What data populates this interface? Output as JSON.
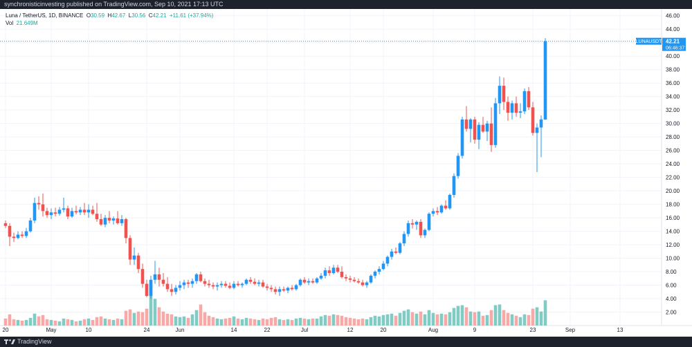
{
  "header": {
    "published": "synchronisticinvesting published on TradingView.com, Sep 10, 2021 17:13 UTC"
  },
  "footer": {
    "brand": "TradingView"
  },
  "legend": {
    "symbol": "Luna / TetherUS, 1D, BINANCE",
    "o_label": "O",
    "o": "30.59",
    "h_label": "H",
    "h": "42.67",
    "l_label": "L",
    "l": "30.56",
    "c_label": "C",
    "c": "42.21",
    "change": "+11.61 (+37.94%)",
    "vol_label": "Vol",
    "vol": "21.649M"
  },
  "price_tag": {
    "symbol": "LUNAUSDT",
    "price": "42.21",
    "countdown": "06:46:37"
  },
  "colors": {
    "up": "#2196f3",
    "down": "#ef5350",
    "vol_up": "#80cbc4",
    "vol_down": "#f7a9a7",
    "background": "#ffffff",
    "grid": "#f0f3fa",
    "axis_text": "#131722",
    "last_price_line": "#2196f3"
  },
  "chart_data": {
    "type": "candlestick",
    "title": "Luna / TetherUS, 1D, BINANCE",
    "y_range": [
      0,
      47
    ],
    "y_ticks": [
      "46.00",
      "44.00",
      "42.00",
      "40.00",
      "38.00",
      "36.00",
      "34.00",
      "32.00",
      "30.00",
      "28.00",
      "26.00",
      "24.00",
      "22.00",
      "20.00",
      "18.00",
      "16.00",
      "14.00",
      "12.00",
      "10.00",
      "8.00",
      "6.00",
      "4.00",
      "2.00"
    ],
    "x_ticks": [
      {
        "label": "20",
        "i": 0
      },
      {
        "label": "May",
        "i": 11
      },
      {
        "label": "10",
        "i": 20
      },
      {
        "label": "24",
        "i": 34
      },
      {
        "label": "Jun",
        "i": 42
      },
      {
        "label": "14",
        "i": 55
      },
      {
        "label": "22",
        "i": 63
      },
      {
        "label": "Jul",
        "i": 72
      },
      {
        "label": "12",
        "i": 83
      },
      {
        "label": "20",
        "i": 91
      },
      {
        "label": "Aug",
        "i": 103
      },
      {
        "label": "9",
        "i": 113
      },
      {
        "label": "23",
        "i": 127
      },
      {
        "label": "Sep",
        "i": 136
      },
      {
        "label": "13",
        "i": 148
      }
    ],
    "grid": true,
    "candles": [
      {
        "o": 15.2,
        "h": 15.6,
        "l": 14.5,
        "c": 14.8,
        "v": 1.0
      },
      {
        "o": 14.8,
        "h": 15.2,
        "l": 11.8,
        "c": 13.2,
        "v": 1.6
      },
      {
        "o": 13.2,
        "h": 13.8,
        "l": 12.4,
        "c": 13.0,
        "v": 0.9
      },
      {
        "o": 13.0,
        "h": 14.0,
        "l": 12.8,
        "c": 13.5,
        "v": 0.8
      },
      {
        "o": 13.5,
        "h": 14.0,
        "l": 13.0,
        "c": 13.3,
        "v": 0.7
      },
      {
        "o": 13.3,
        "h": 14.5,
        "l": 13.0,
        "c": 14.0,
        "v": 0.8
      },
      {
        "o": 14.0,
        "h": 16.0,
        "l": 13.8,
        "c": 15.6,
        "v": 1.1
      },
      {
        "o": 15.6,
        "h": 19.0,
        "l": 15.2,
        "c": 18.2,
        "v": 1.7
      },
      {
        "o": 18.2,
        "h": 19.2,
        "l": 17.2,
        "c": 18.0,
        "v": 1.3
      },
      {
        "o": 18.0,
        "h": 19.6,
        "l": 16.2,
        "c": 17.0,
        "v": 1.5
      },
      {
        "o": 17.0,
        "h": 17.5,
        "l": 16.0,
        "c": 16.4,
        "v": 0.9
      },
      {
        "o": 16.4,
        "h": 17.4,
        "l": 15.8,
        "c": 16.8,
        "v": 0.8
      },
      {
        "o": 16.8,
        "h": 17.5,
        "l": 16.2,
        "c": 16.6,
        "v": 0.7
      },
      {
        "o": 16.6,
        "h": 17.6,
        "l": 16.3,
        "c": 17.2,
        "v": 0.6
      },
      {
        "o": 17.2,
        "h": 19.0,
        "l": 16.8,
        "c": 17.4,
        "v": 1.0
      },
      {
        "o": 17.4,
        "h": 17.8,
        "l": 15.8,
        "c": 16.2,
        "v": 0.9
      },
      {
        "o": 16.2,
        "h": 17.5,
        "l": 16.0,
        "c": 17.0,
        "v": 0.8
      },
      {
        "o": 17.0,
        "h": 17.8,
        "l": 16.5,
        "c": 16.8,
        "v": 0.6
      },
      {
        "o": 16.8,
        "h": 17.6,
        "l": 16.4,
        "c": 17.2,
        "v": 0.7
      },
      {
        "o": 17.2,
        "h": 18.2,
        "l": 16.4,
        "c": 16.8,
        "v": 0.9
      },
      {
        "o": 16.8,
        "h": 18.0,
        "l": 16.0,
        "c": 17.2,
        "v": 1.0
      },
      {
        "o": 17.2,
        "h": 17.8,
        "l": 16.4,
        "c": 16.6,
        "v": 0.8
      },
      {
        "o": 16.6,
        "h": 18.2,
        "l": 15.4,
        "c": 15.8,
        "v": 1.2
      },
      {
        "o": 15.8,
        "h": 16.6,
        "l": 14.8,
        "c": 15.0,
        "v": 1.3
      },
      {
        "o": 15.0,
        "h": 16.4,
        "l": 14.6,
        "c": 16.0,
        "v": 1.0
      },
      {
        "o": 16.0,
        "h": 17.0,
        "l": 15.2,
        "c": 15.6,
        "v": 0.9
      },
      {
        "o": 15.6,
        "h": 16.2,
        "l": 15.0,
        "c": 15.9,
        "v": 0.8
      },
      {
        "o": 15.9,
        "h": 17.0,
        "l": 15.0,
        "c": 15.2,
        "v": 1.0
      },
      {
        "o": 15.2,
        "h": 16.4,
        "l": 14.8,
        "c": 15.8,
        "v": 0.9
      },
      {
        "o": 15.8,
        "h": 16.0,
        "l": 12.2,
        "c": 13.0,
        "v": 2.1
      },
      {
        "o": 13.0,
        "h": 13.4,
        "l": 9.0,
        "c": 9.8,
        "v": 2.3
      },
      {
        "o": 9.8,
        "h": 11.6,
        "l": 9.0,
        "c": 10.4,
        "v": 1.8
      },
      {
        "o": 10.4,
        "h": 10.8,
        "l": 7.8,
        "c": 8.4,
        "v": 2.0
      },
      {
        "o": 8.4,
        "h": 9.2,
        "l": 5.6,
        "c": 6.2,
        "v": 1.9
      },
      {
        "o": 6.2,
        "h": 6.8,
        "l": 4.2,
        "c": 4.4,
        "v": 2.4
      },
      {
        "o": 4.4,
        "h": 7.4,
        "l": 4.0,
        "c": 6.8,
        "v": 5.9
      },
      {
        "o": 6.8,
        "h": 9.6,
        "l": 6.2,
        "c": 7.6,
        "v": 3.8
      },
      {
        "o": 7.6,
        "h": 8.6,
        "l": 5.8,
        "c": 6.8,
        "v": 2.6
      },
      {
        "o": 6.8,
        "h": 7.8,
        "l": 5.8,
        "c": 6.2,
        "v": 2.0
      },
      {
        "o": 6.2,
        "h": 7.2,
        "l": 5.0,
        "c": 5.4,
        "v": 1.7
      },
      {
        "o": 5.4,
        "h": 6.2,
        "l": 4.4,
        "c": 5.0,
        "v": 1.6
      },
      {
        "o": 5.0,
        "h": 6.0,
        "l": 4.6,
        "c": 5.6,
        "v": 1.3
      },
      {
        "o": 5.6,
        "h": 6.6,
        "l": 5.2,
        "c": 6.0,
        "v": 1.2
      },
      {
        "o": 6.0,
        "h": 6.8,
        "l": 5.4,
        "c": 6.4,
        "v": 1.3
      },
      {
        "o": 6.4,
        "h": 6.8,
        "l": 5.6,
        "c": 6.2,
        "v": 1.1
      },
      {
        "o": 6.2,
        "h": 7.0,
        "l": 5.6,
        "c": 6.6,
        "v": 1.6
      },
      {
        "o": 6.6,
        "h": 7.8,
        "l": 6.2,
        "c": 7.6,
        "v": 2.2
      },
      {
        "o": 7.6,
        "h": 8.0,
        "l": 6.4,
        "c": 6.6,
        "v": 3.0
      },
      {
        "o": 6.6,
        "h": 7.0,
        "l": 5.8,
        "c": 6.2,
        "v": 1.9
      },
      {
        "o": 6.2,
        "h": 6.8,
        "l": 5.6,
        "c": 6.0,
        "v": 1.4
      },
      {
        "o": 6.0,
        "h": 6.4,
        "l": 5.4,
        "c": 5.8,
        "v": 1.2
      },
      {
        "o": 5.8,
        "h": 6.4,
        "l": 5.2,
        "c": 6.0,
        "v": 1.0
      },
      {
        "o": 6.0,
        "h": 6.6,
        "l": 5.6,
        "c": 6.2,
        "v": 0.9
      },
      {
        "o": 6.2,
        "h": 6.6,
        "l": 5.6,
        "c": 5.9,
        "v": 1.0
      },
      {
        "o": 5.9,
        "h": 6.4,
        "l": 5.4,
        "c": 5.6,
        "v": 1.1
      },
      {
        "o": 5.6,
        "h": 6.6,
        "l": 5.4,
        "c": 6.2,
        "v": 1.3
      },
      {
        "o": 6.2,
        "h": 6.6,
        "l": 5.8,
        "c": 6.0,
        "v": 1.0
      },
      {
        "o": 6.0,
        "h": 6.4,
        "l": 5.6,
        "c": 6.2,
        "v": 0.9
      },
      {
        "o": 6.2,
        "h": 7.0,
        "l": 6.0,
        "c": 6.8,
        "v": 1.1
      },
      {
        "o": 6.8,
        "h": 7.2,
        "l": 6.2,
        "c": 6.5,
        "v": 1.0
      },
      {
        "o": 6.5,
        "h": 7.0,
        "l": 6.0,
        "c": 6.2,
        "v": 0.9
      },
      {
        "o": 6.2,
        "h": 6.8,
        "l": 5.8,
        "c": 6.4,
        "v": 0.8
      },
      {
        "o": 6.4,
        "h": 6.8,
        "l": 5.6,
        "c": 5.8,
        "v": 1.0
      },
      {
        "o": 5.8,
        "h": 6.2,
        "l": 5.2,
        "c": 5.6,
        "v": 0.9
      },
      {
        "o": 5.6,
        "h": 6.0,
        "l": 5.0,
        "c": 5.4,
        "v": 1.1
      },
      {
        "o": 5.4,
        "h": 5.8,
        "l": 4.6,
        "c": 5.0,
        "v": 1.2
      },
      {
        "o": 5.0,
        "h": 5.8,
        "l": 4.4,
        "c": 5.4,
        "v": 0.9
      },
      {
        "o": 5.4,
        "h": 5.8,
        "l": 5.0,
        "c": 5.2,
        "v": 0.8
      },
      {
        "o": 5.2,
        "h": 5.8,
        "l": 4.8,
        "c": 5.6,
        "v": 0.9
      },
      {
        "o": 5.6,
        "h": 6.0,
        "l": 5.2,
        "c": 5.4,
        "v": 0.8
      },
      {
        "o": 5.4,
        "h": 6.2,
        "l": 5.2,
        "c": 6.0,
        "v": 1.0
      },
      {
        "o": 6.0,
        "h": 7.0,
        "l": 5.8,
        "c": 6.8,
        "v": 1.1
      },
      {
        "o": 6.8,
        "h": 7.2,
        "l": 6.2,
        "c": 6.4,
        "v": 1.0
      },
      {
        "o": 6.4,
        "h": 7.0,
        "l": 6.0,
        "c": 6.6,
        "v": 0.9
      },
      {
        "o": 6.6,
        "h": 7.0,
        "l": 6.2,
        "c": 6.4,
        "v": 1.0
      },
      {
        "o": 6.4,
        "h": 7.2,
        "l": 6.2,
        "c": 7.0,
        "v": 1.0
      },
      {
        "o": 7.0,
        "h": 7.8,
        "l": 6.8,
        "c": 7.4,
        "v": 1.3
      },
      {
        "o": 7.4,
        "h": 8.6,
        "l": 7.0,
        "c": 8.2,
        "v": 1.5
      },
      {
        "o": 8.2,
        "h": 8.8,
        "l": 7.4,
        "c": 7.8,
        "v": 1.4
      },
      {
        "o": 7.8,
        "h": 9.0,
        "l": 7.6,
        "c": 8.6,
        "v": 1.6
      },
      {
        "o": 8.6,
        "h": 9.0,
        "l": 7.8,
        "c": 8.0,
        "v": 1.5
      },
      {
        "o": 8.0,
        "h": 8.8,
        "l": 7.0,
        "c": 7.2,
        "v": 1.4
      },
      {
        "o": 7.2,
        "h": 7.6,
        "l": 6.6,
        "c": 7.0,
        "v": 1.2
      },
      {
        "o": 7.0,
        "h": 7.4,
        "l": 6.4,
        "c": 6.8,
        "v": 1.1
      },
      {
        "o": 6.8,
        "h": 7.2,
        "l": 6.4,
        "c": 6.6,
        "v": 1.0
      },
      {
        "o": 6.6,
        "h": 7.0,
        "l": 6.2,
        "c": 6.4,
        "v": 0.9
      },
      {
        "o": 6.4,
        "h": 6.8,
        "l": 5.8,
        "c": 6.0,
        "v": 1.0
      },
      {
        "o": 6.0,
        "h": 6.6,
        "l": 5.6,
        "c": 6.4,
        "v": 0.9
      },
      {
        "o": 6.4,
        "h": 7.6,
        "l": 6.2,
        "c": 7.4,
        "v": 1.2
      },
      {
        "o": 7.4,
        "h": 8.2,
        "l": 7.0,
        "c": 8.0,
        "v": 1.4
      },
      {
        "o": 8.0,
        "h": 8.8,
        "l": 7.6,
        "c": 8.4,
        "v": 1.3
      },
      {
        "o": 8.4,
        "h": 9.6,
        "l": 8.2,
        "c": 9.2,
        "v": 1.5
      },
      {
        "o": 9.2,
        "h": 10.4,
        "l": 8.8,
        "c": 10.2,
        "v": 1.6
      },
      {
        "o": 10.2,
        "h": 11.4,
        "l": 9.8,
        "c": 11.0,
        "v": 1.7
      },
      {
        "o": 11.0,
        "h": 11.6,
        "l": 10.6,
        "c": 10.8,
        "v": 1.4
      },
      {
        "o": 10.8,
        "h": 12.4,
        "l": 10.6,
        "c": 12.2,
        "v": 1.8
      },
      {
        "o": 12.2,
        "h": 14.0,
        "l": 11.8,
        "c": 13.6,
        "v": 2.1
      },
      {
        "o": 13.6,
        "h": 15.6,
        "l": 13.2,
        "c": 15.2,
        "v": 2.3
      },
      {
        "o": 15.2,
        "h": 15.8,
        "l": 14.4,
        "c": 15.0,
        "v": 1.9
      },
      {
        "o": 15.0,
        "h": 15.6,
        "l": 14.2,
        "c": 15.4,
        "v": 1.7
      },
      {
        "o": 15.4,
        "h": 15.8,
        "l": 13.0,
        "c": 13.4,
        "v": 2.0
      },
      {
        "o": 13.4,
        "h": 14.4,
        "l": 13.0,
        "c": 14.2,
        "v": 1.6
      },
      {
        "o": 14.2,
        "h": 16.8,
        "l": 14.0,
        "c": 16.6,
        "v": 2.2
      },
      {
        "o": 16.6,
        "h": 17.4,
        "l": 16.2,
        "c": 17.0,
        "v": 1.8
      },
      {
        "o": 17.0,
        "h": 17.6,
        "l": 16.4,
        "c": 16.8,
        "v": 1.6
      },
      {
        "o": 16.8,
        "h": 18.0,
        "l": 16.6,
        "c": 17.8,
        "v": 1.7
      },
      {
        "o": 17.8,
        "h": 18.6,
        "l": 17.2,
        "c": 17.4,
        "v": 1.6
      },
      {
        "o": 17.4,
        "h": 19.6,
        "l": 17.2,
        "c": 19.4,
        "v": 1.9
      },
      {
        "o": 19.4,
        "h": 22.6,
        "l": 19.0,
        "c": 22.2,
        "v": 2.5
      },
      {
        "o": 22.2,
        "h": 25.6,
        "l": 21.8,
        "c": 25.2,
        "v": 2.8
      },
      {
        "o": 25.2,
        "h": 31.0,
        "l": 24.8,
        "c": 30.6,
        "v": 2.9
      },
      {
        "o": 30.6,
        "h": 32.6,
        "l": 28.8,
        "c": 29.2,
        "v": 2.6
      },
      {
        "o": 29.2,
        "h": 30.8,
        "l": 27.2,
        "c": 30.6,
        "v": 2.0
      },
      {
        "o": 30.6,
        "h": 31.0,
        "l": 27.0,
        "c": 27.6,
        "v": 1.9
      },
      {
        "o": 27.6,
        "h": 30.2,
        "l": 26.2,
        "c": 29.8,
        "v": 2.0
      },
      {
        "o": 29.8,
        "h": 31.0,
        "l": 28.6,
        "c": 28.8,
        "v": 1.4
      },
      {
        "o": 28.8,
        "h": 30.4,
        "l": 27.4,
        "c": 30.0,
        "v": 1.5
      },
      {
        "o": 30.0,
        "h": 32.4,
        "l": 25.8,
        "c": 26.8,
        "v": 2.2
      },
      {
        "o": 26.8,
        "h": 33.8,
        "l": 26.4,
        "c": 33.0,
        "v": 2.9
      },
      {
        "o": 33.0,
        "h": 37.0,
        "l": 31.4,
        "c": 35.6,
        "v": 3.0
      },
      {
        "o": 35.6,
        "h": 36.8,
        "l": 32.0,
        "c": 33.2,
        "v": 2.2
      },
      {
        "o": 33.2,
        "h": 34.0,
        "l": 30.4,
        "c": 31.6,
        "v": 1.8
      },
      {
        "o": 31.6,
        "h": 33.4,
        "l": 30.6,
        "c": 33.0,
        "v": 1.6
      },
      {
        "o": 33.0,
        "h": 34.0,
        "l": 31.0,
        "c": 31.6,
        "v": 1.4
      },
      {
        "o": 31.6,
        "h": 33.0,
        "l": 30.8,
        "c": 31.8,
        "v": 1.2
      },
      {
        "o": 31.8,
        "h": 35.2,
        "l": 31.4,
        "c": 34.8,
        "v": 1.6
      },
      {
        "o": 34.8,
        "h": 35.4,
        "l": 32.0,
        "c": 32.4,
        "v": 1.5
      },
      {
        "o": 32.4,
        "h": 33.2,
        "l": 28.2,
        "c": 28.6,
        "v": 2.4
      },
      {
        "o": 28.6,
        "h": 30.0,
        "l": 22.8,
        "c": 29.4,
        "v": 2.6
      },
      {
        "o": 29.4,
        "h": 31.2,
        "l": 25.0,
        "c": 30.6,
        "v": 2.0
      },
      {
        "o": 30.59,
        "h": 42.67,
        "l": 30.56,
        "c": 42.21,
        "v": 3.6
      }
    ]
  }
}
